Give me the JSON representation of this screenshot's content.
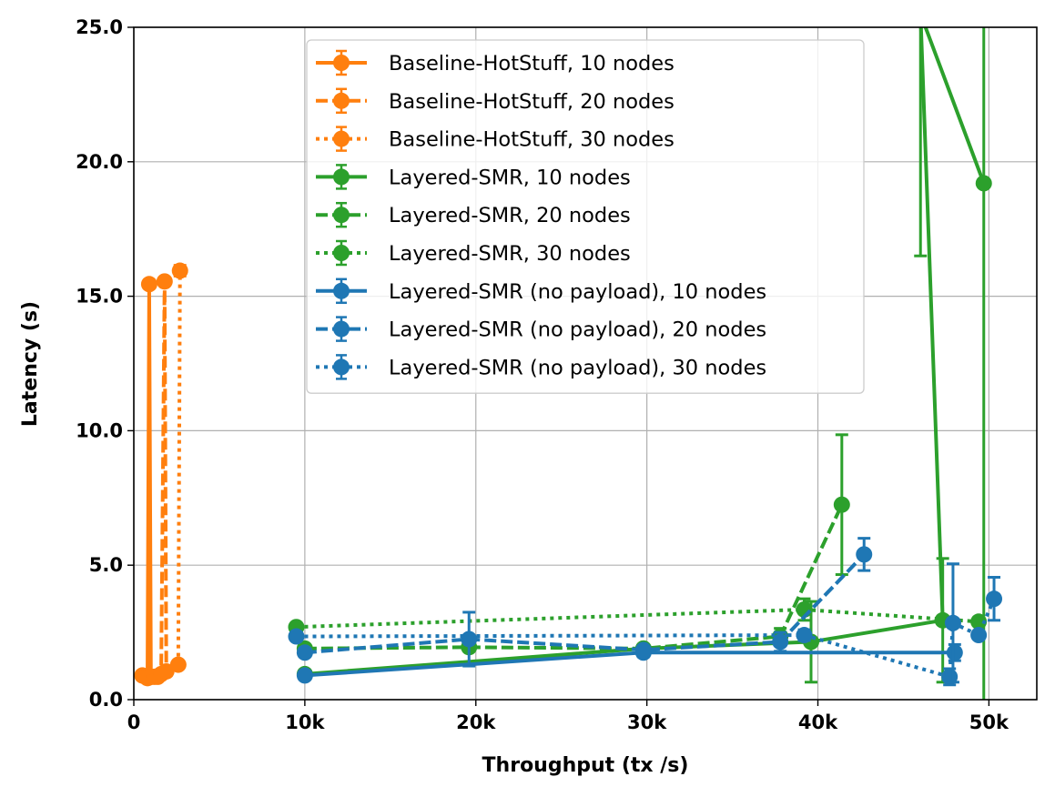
{
  "chart_data": {
    "type": "line",
    "title": "",
    "xlabel": "Throughput (tx /s)",
    "ylabel": "Latency (s)",
    "xlim": [
      0,
      52800
    ],
    "ylim": [
      0,
      25
    ],
    "xticks": [
      0,
      10000,
      20000,
      30000,
      40000,
      50000
    ],
    "xtick_labels": [
      "0",
      "10k",
      "20k",
      "30k",
      "40k",
      "50k"
    ],
    "yticks": [
      0,
      5,
      10,
      15,
      20,
      25
    ],
    "ytick_labels": [
      "0.0",
      "5.0",
      "10.0",
      "15.0",
      "20.0",
      "25.0"
    ],
    "grid": true,
    "legend_position": "top-center",
    "colors": {
      "baseline": "#ff7f0e",
      "layered": "#2ca02c",
      "nopayload": "#1f77b4"
    },
    "series": [
      {
        "name": "Baseline-HotStuff, 10 nodes",
        "color": "#ff7f0e",
        "style": "solid",
        "x": [
          500,
          700,
          800,
          900,
          1000
        ],
        "y": [
          0.9,
          0.85,
          0.8,
          15.45,
          0.85
        ],
        "err": [
          0.05,
          0.05,
          0.05,
          0.05,
          0.1
        ]
      },
      {
        "name": "Baseline-HotStuff, 20 nodes",
        "color": "#ff7f0e",
        "style": "dashed",
        "x": [
          1200,
          1400,
          1600,
          1800,
          1900
        ],
        "y": [
          0.85,
          0.85,
          0.95,
          15.55,
          1.05
        ],
        "err": [
          0.05,
          0.05,
          0.1,
          0.05,
          0.15
        ]
      },
      {
        "name": "Baseline-HotStuff, 30 nodes",
        "color": "#ff7f0e",
        "style": "dotted",
        "x": [
          2600,
          2700
        ],
        "y": [
          1.3,
          15.95
        ],
        "err": [
          0.05,
          0.2
        ]
      },
      {
        "name": "Layered-SMR, 10 nodes",
        "color": "#2ca02c",
        "style": "solid",
        "x": [
          10000,
          29800,
          39600,
          47300,
          46000,
          49700
        ],
        "y": [
          0.95,
          1.9,
          2.15,
          2.95,
          25.5,
          19.2
        ],
        "err": [
          0.05,
          0.1,
          1.5,
          2.3,
          9.0,
          22.0
        ]
      },
      {
        "name": "Layered-SMR, 20 nodes",
        "color": "#2ca02c",
        "style": "dashed",
        "x": [
          10000,
          19600,
          29800,
          37800,
          41400
        ],
        "y": [
          1.9,
          1.95,
          1.9,
          2.35,
          7.25
        ],
        "err": [
          0.05,
          0.1,
          0.1,
          0.3,
          2.6
        ]
      },
      {
        "name": "Layered-SMR, 30 nodes",
        "color": "#2ca02c",
        "style": "dotted",
        "x": [
          9500,
          39200,
          49400
        ],
        "y": [
          2.7,
          3.35,
          2.9
        ],
        "err": [
          0.1,
          0.4,
          0.1
        ]
      },
      {
        "name": "Layered-SMR (no payload), 10 nodes",
        "color": "#1f77b4",
        "style": "solid",
        "x": [
          10000,
          29800,
          48000
        ],
        "y": [
          0.9,
          1.75,
          1.75
        ],
        "err": [
          0.05,
          0.15,
          0.3
        ]
      },
      {
        "name": "Layered-SMR (no payload), 20 nodes",
        "color": "#1f77b4",
        "style": "dashed",
        "x": [
          10000,
          19600,
          29800,
          37800,
          42700
        ],
        "y": [
          1.75,
          2.25,
          1.85,
          2.15,
          5.4
        ],
        "err": [
          0.1,
          1.0,
          0.1,
          0.35,
          0.6
        ]
      },
      {
        "name": "Layered-SMR (no payload), 30 nodes",
        "color": "#1f77b4",
        "style": "dotted",
        "x": [
          9500,
          39200,
          47700,
          47900,
          49400,
          50300
        ],
        "y": [
          2.35,
          2.4,
          0.85,
          2.85,
          2.4,
          3.75
        ],
        "err": [
          0.1,
          0.2,
          0.3,
          2.2,
          0.1,
          0.8
        ]
      }
    ]
  }
}
